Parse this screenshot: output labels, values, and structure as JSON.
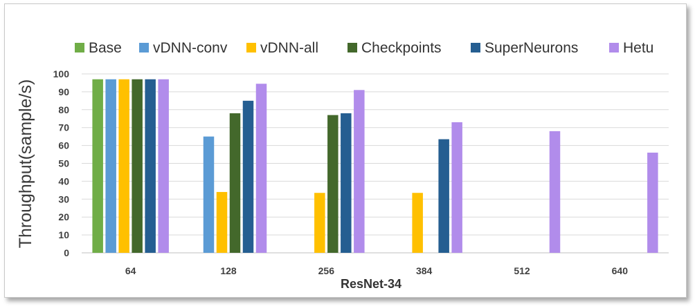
{
  "chart_data": {
    "type": "bar",
    "title": "",
    "xlabel": "ResNet-34",
    "ylabel": "Throughput(sample/s)",
    "categories": [
      "64",
      "128",
      "256",
      "384",
      "512",
      "640"
    ],
    "ylim": [
      0,
      100
    ],
    "yticks": [
      0,
      10,
      20,
      30,
      40,
      50,
      60,
      70,
      80,
      90,
      100
    ],
    "grid": true,
    "legend_position": "top",
    "series": [
      {
        "name": "Base",
        "color": "#70AD47",
        "values": [
          97,
          null,
          null,
          null,
          null,
          null
        ]
      },
      {
        "name": "vDNN-conv",
        "color": "#5B9BD5",
        "values": [
          97,
          65,
          null,
          null,
          null,
          null
        ]
      },
      {
        "name": "vDNN-all",
        "color": "#FFC000",
        "values": [
          97,
          34,
          33.5,
          33.5,
          null,
          null
        ]
      },
      {
        "name": "Checkpoints",
        "color": "#43682B",
        "values": [
          97,
          78,
          77,
          null,
          null,
          null
        ]
      },
      {
        "name": "SuperNeurons",
        "color": "#255E91",
        "values": [
          97,
          85,
          78,
          63.5,
          null,
          null
        ]
      },
      {
        "name": "Hetu",
        "color": "#B18CEB",
        "values": [
          97,
          94.5,
          91,
          73,
          68,
          56
        ]
      }
    ]
  }
}
